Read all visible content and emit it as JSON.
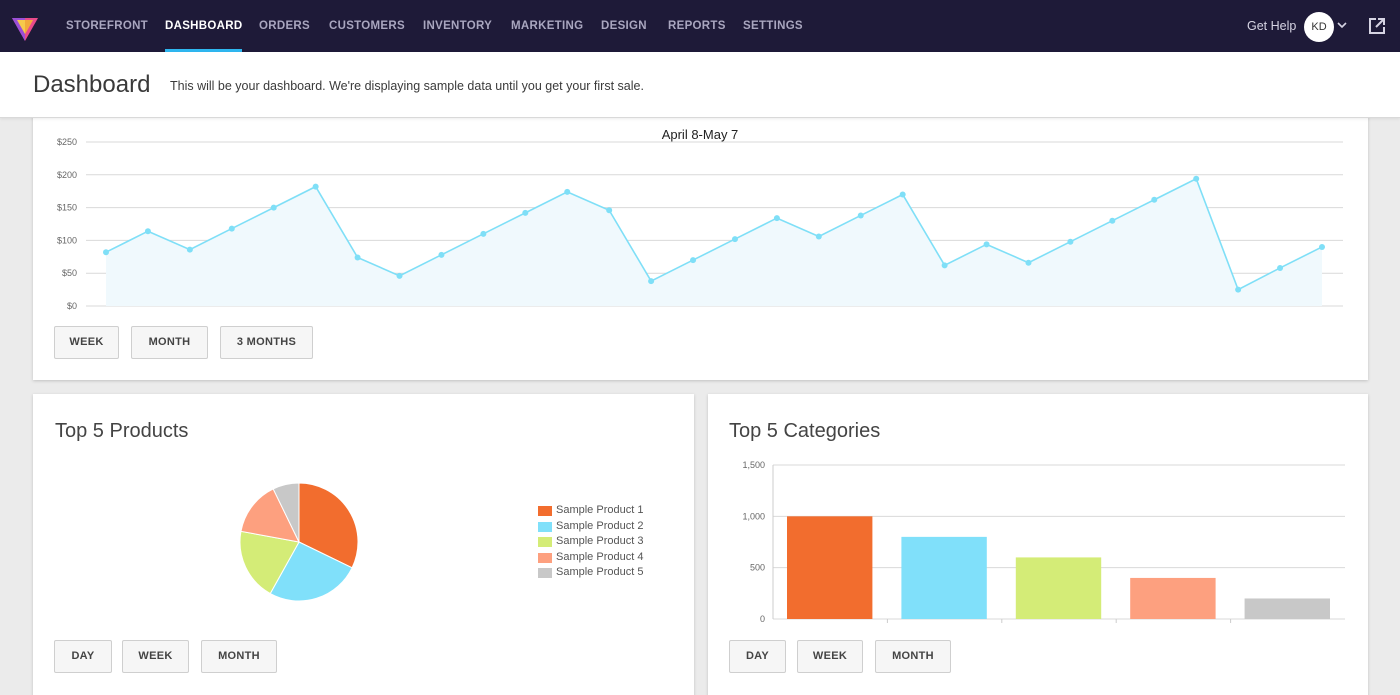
{
  "nav": {
    "items": [
      {
        "label": "STOREFRONT",
        "active": false
      },
      {
        "label": "DASHBOARD",
        "active": true
      },
      {
        "label": "ORDERS",
        "active": false
      },
      {
        "label": "CUSTOMERS",
        "active": false
      },
      {
        "label": "INVENTORY",
        "active": false
      },
      {
        "label": "MARKETING",
        "active": false
      },
      {
        "label": "DESIGN",
        "active": false
      },
      {
        "label": "REPORTS",
        "active": false
      },
      {
        "label": "SETTINGS",
        "active": false
      }
    ],
    "get_help": "Get Help",
    "avatar_initials": "KD",
    "icons": {
      "logo": "logo-icon",
      "caret": "chevron-down-icon",
      "external": "external-link-icon"
    },
    "accent": "#2fb7f0"
  },
  "header": {
    "title": "Dashboard",
    "description": "This will be your dashboard. We're displaying sample data until you get your first sale."
  },
  "sales": {
    "buttons": [
      "WEEK",
      "MONTH",
      "3 MONTHS"
    ]
  },
  "products": {
    "title": "Top 5 Products",
    "buttons": [
      "DAY",
      "WEEK",
      "MONTH"
    ]
  },
  "categories": {
    "title": "Top 5 Categories",
    "buttons": [
      "DAY",
      "WEEK",
      "MONTH"
    ]
  },
  "chart_data": [
    {
      "type": "area",
      "title": "April 8-May 7",
      "xlabel": "",
      "ylabel": "",
      "ylim": [
        0,
        250
      ],
      "y_ticks": [
        "$0",
        "$50",
        "$100",
        "$150",
        "$200",
        "$250"
      ],
      "y_tick_values": [
        0,
        50,
        100,
        150,
        200,
        250
      ],
      "grid": true,
      "color": "#7fdff7",
      "fill": "#f0f9fd",
      "values": [
        82,
        114,
        86,
        118,
        150,
        182,
        74,
        46,
        78,
        110,
        142,
        174,
        146,
        38,
        70,
        102,
        134,
        106,
        138,
        170,
        62,
        94,
        66,
        98,
        130,
        162,
        194,
        25,
        58,
        90
      ]
    },
    {
      "type": "pie",
      "title": "Top 5 Products",
      "legend_position": "right",
      "categories": [
        "Sample Product 1",
        "Sample Product 2",
        "Sample Product 3",
        "Sample Product 4",
        "Sample Product 5"
      ],
      "values": [
        32.2,
        25.9,
        19.8,
        14.9,
        7.2
      ],
      "colors": [
        "#f26d2e",
        "#80e0fa",
        "#d4ec77",
        "#fda07f",
        "#c8c8c8"
      ]
    },
    {
      "type": "bar",
      "title": "Top 5 Categories",
      "xlabel": "",
      "ylabel": "",
      "ylim": [
        0,
        1500
      ],
      "y_ticks": [
        "0",
        "500",
        "1,000",
        "1,500"
      ],
      "y_tick_values": [
        0,
        500,
        1000,
        1500
      ],
      "grid": true,
      "categories": [
        "",
        "",
        "",
        "",
        ""
      ],
      "values": [
        1000,
        800,
        600,
        400,
        200
      ],
      "colors": [
        "#f26d2e",
        "#80e0fa",
        "#d4ec77",
        "#fda07f",
        "#c8c8c8"
      ]
    }
  ]
}
